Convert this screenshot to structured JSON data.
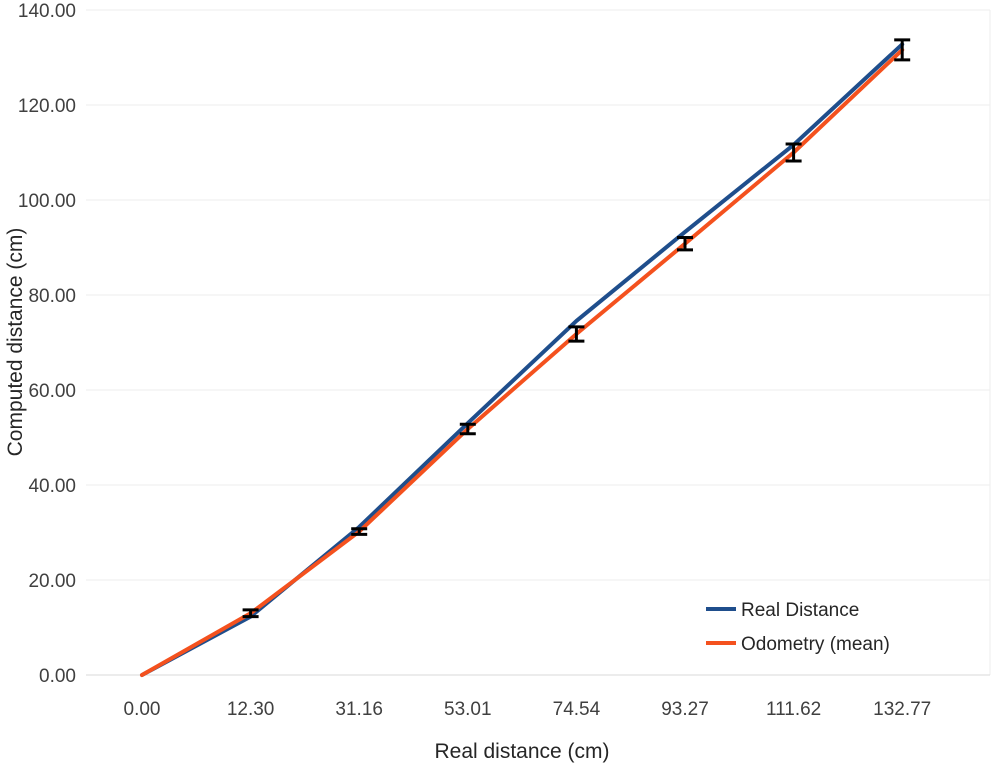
{
  "chart_data": {
    "type": "line",
    "xlabel": "Real distance (cm)",
    "ylabel": "Computed distance (cm)",
    "categories": [
      "0.00",
      "12.30",
      "31.16",
      "53.01",
      "74.54",
      "93.27",
      "111.62",
      "132.77"
    ],
    "ylim": [
      0,
      140
    ],
    "yticks": [
      "0.00",
      "20.00",
      "40.00",
      "60.00",
      "80.00",
      "100.00",
      "120.00",
      "140.00"
    ],
    "grid": "horizontal",
    "legend_position": "bottom-right",
    "series": [
      {
        "name": "Real Distance",
        "color": "#1f4e8c",
        "values": [
          0.0,
          12.3,
          31.16,
          53.01,
          74.54,
          93.27,
          111.62,
          132.77
        ]
      },
      {
        "name": "Odometry (mean)",
        "color": "#f4511e",
        "values": [
          0.0,
          13.0,
          30.2,
          51.8,
          71.8,
          90.8,
          110.0,
          131.6
        ],
        "error": [
          0.0,
          0.7,
          0.6,
          1.0,
          1.5,
          1.3,
          1.8,
          2.1
        ]
      }
    ]
  }
}
